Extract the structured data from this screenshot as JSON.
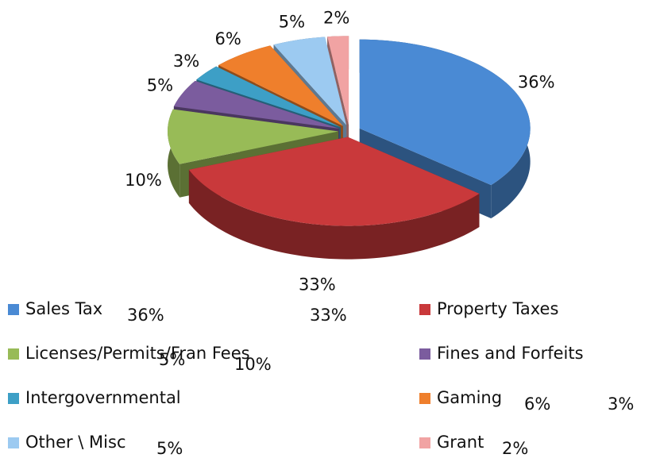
{
  "chart_data": {
    "type": "pie",
    "categories": [
      "Sales Tax",
      "Property Taxes",
      "Licenses/Permits/Fran Fees",
      "Fines and Forfeits",
      "Intergovernmental",
      "Gaming",
      "Other \\ Misc",
      "Grant"
    ],
    "values": [
      36,
      33,
      10,
      5,
      3,
      6,
      5,
      2
    ],
    "value_labels": [
      "36%",
      "33%",
      "10%",
      "5%",
      "3%",
      "6%",
      "5%",
      "2%"
    ],
    "colors": [
      "#4a8ad4",
      "#c9393b",
      "#98bb57",
      "#7b5c9e",
      "#3d9fc6",
      "#ef7f2c",
      "#9ccaf1",
      "#f1a3a3"
    ]
  }
}
